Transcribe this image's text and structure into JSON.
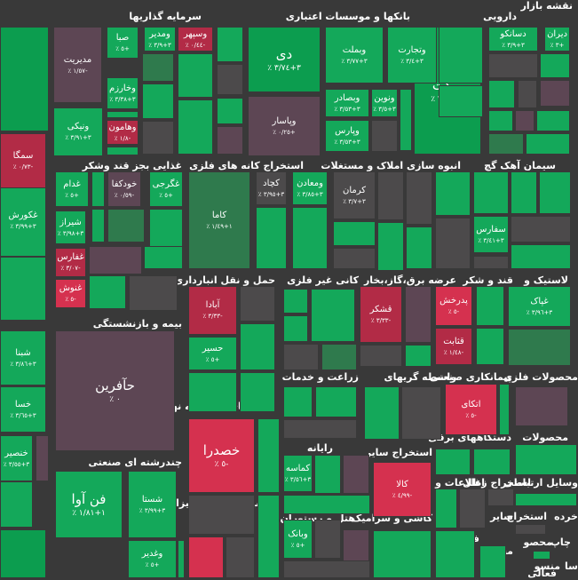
{
  "title": "نقشه بازار",
  "colors": {
    "strong_green": "#0c9d4f",
    "green": "#14a85a",
    "mid_green": "#2f7a4d",
    "gray": "#4c4a4b",
    "mauve": "#5d4654",
    "red": "#b22b46",
    "strong_red": "#d5314f",
    "background": "#393939"
  },
  "chart_data": {
    "type": "heatmap",
    "title": "نقشه بازار",
    "sectors": [
      {
        "name": "دارویی"
      },
      {
        "name": "بانکها و موسسات اعتباری"
      },
      {
        "name": "سرمایه گذاریها"
      },
      {
        "name": "سیمان آهک گچ"
      },
      {
        "name": "انبوه سازی املاک و مستغلات"
      },
      {
        "name": "استخراج کانه های فلزی"
      },
      {
        "name": "غذایی بجز قند وشکر"
      },
      {
        "name": "لاستیک و"
      },
      {
        "name": "قند و شکر"
      },
      {
        "name": "عرضه برق،گاز،بخار"
      },
      {
        "name": "کانی غیر فلزی"
      },
      {
        "name": "حمل و نقل انبارداری و"
      },
      {
        "name": "بیمه و بازنشستگی"
      },
      {
        "name": "محصولات فلزی"
      },
      {
        "name": "پیمانکاری صنعتی"
      },
      {
        "name": "واسطه گریهای"
      },
      {
        "name": "زراعت و خدمات"
      },
      {
        "name": "فعالیتهای کمکی به نهاد"
      },
      {
        "name": "محصولات"
      },
      {
        "name": "دستگاههای برقی"
      },
      {
        "name": "استخراج سایر"
      },
      {
        "name": "رایانه"
      },
      {
        "name": "چندرشته ای صنعتی"
      },
      {
        "name": "وسایل ارتباطی"
      },
      {
        "name": "استخراج زغال"
      },
      {
        "name": "اطلاعات و"
      },
      {
        "name": "ماشین آلات و تجهیزات"
      },
      {
        "name": "هتل و رستوران"
      },
      {
        "name": "کاشی و سرامیک"
      },
      {
        "name": "فنی و"
      },
      {
        "name": "سایر"
      },
      {
        "name": "استخراج"
      },
      {
        "name": "خرده"
      },
      {
        "name": "چاپ"
      },
      {
        "name": "محصو"
      },
      {
        "name": "مخابرا"
      },
      {
        "name": "منسو"
      },
      {
        "name": "سا"
      },
      {
        "name": "فعالی"
      }
    ],
    "tiles": [
      {
        "name": "دیران",
        "change": "٪ ٣+",
        "color": "green"
      },
      {
        "name": "دسانکو",
        "change": "٪ ٣+٣/٩",
        "color": "green"
      },
      {
        "name": "برکت",
        "change": "٪ ٣+٣/٠٨",
        "color": "strong_green"
      },
      {
        "name": "دی",
        "change": "٪ ٣+٣/٧٤",
        "color": "strong_green"
      },
      {
        "name": "وتجارت",
        "change": "٪ ٣+٣/٤",
        "color": "green"
      },
      {
        "name": "وبملت",
        "change": "٪ ٣+٣/٧٧",
        "color": "green"
      },
      {
        "name": "ونوین",
        "change": "٪ ٣+٣/٥",
        "color": "green"
      },
      {
        "name": "وبصادر",
        "change": "٪ ٣+٣/٥٣",
        "color": "green"
      },
      {
        "name": "وپارس",
        "change": "٪ ٣+٣/٥٣",
        "color": "green"
      },
      {
        "name": "وپاسار",
        "change": "٪ ٠/٢٥+",
        "color": "mauve"
      },
      {
        "name": "وسپهر",
        "change": "٪ ٠/٤٤-",
        "color": "red"
      },
      {
        "name": "ومدیر",
        "change": "٪ ٣+٣/٩",
        "color": "green"
      },
      {
        "name": "مدیریت",
        "change": "٪ ١/٥٧-",
        "color": "mauve"
      },
      {
        "name": "صبا",
        "change": "٪ ٥+",
        "color": "green"
      },
      {
        "name": "وخارزم",
        "change": "٪ ٣+٣/٣٨",
        "color": "green"
      },
      {
        "name": "ونیکی",
        "change": "٪ ٣+٣/٩١",
        "color": "green"
      },
      {
        "name": "وهامون",
        "change": "٪ ١/٨-",
        "color": "red"
      },
      {
        "name": "سفارس",
        "change": "٪ ٣+٣/٤١",
        "color": "green"
      },
      {
        "name": "کرمان",
        "change": "٪ ٣+٣/٧",
        "color": "gray"
      },
      {
        "name": "کچاد",
        "change": "٪ ٣+٣/٩٥",
        "color": "gray"
      },
      {
        "name": "ومعادن",
        "change": "٪ ٣+٣/٨٥",
        "color": "green"
      },
      {
        "name": "کاما",
        "change": "٪ ١+١/٤٩",
        "color": "mid_green"
      },
      {
        "name": "غگرجی",
        "change": "٪ ٥+",
        "color": "green"
      },
      {
        "name": "غدام",
        "change": "٪ ٥+",
        "color": "green"
      },
      {
        "name": "خودکفا",
        "change": "٪ ٠/٥٩-",
        "color": "mauve"
      },
      {
        "name": "غکورش",
        "change": "٪ ٣+٣/٩٩",
        "color": "green"
      },
      {
        "name": "شیراز",
        "change": "٪ ٣+٣/٩٨",
        "color": "green"
      },
      {
        "name": "غفارس",
        "change": "٪ ٣/٠٧-",
        "color": "red"
      },
      {
        "name": "غنوش",
        "change": "٪ ٥-",
        "color": "strong_red"
      },
      {
        "name": "غپاک",
        "change": "٪ ٣+٣/٩٦",
        "color": "green"
      },
      {
        "name": "پدرخش",
        "change": "٪ ٥-",
        "color": "strong_red"
      },
      {
        "name": "قثابت",
        "change": "٪ ١/٤٨-",
        "color": "red"
      },
      {
        "name": "قشکر",
        "change": "٪ ٣/٣٣-",
        "color": "red"
      },
      {
        "name": "آبادا",
        "change": "٪ ٣/٣٣-",
        "color": "red"
      },
      {
        "name": "حسیر",
        "change": "٪ ٥+",
        "color": "green"
      },
      {
        "name": "حآفرین",
        "change": "٪ ٠",
        "color": "mauve"
      },
      {
        "name": "اتکای",
        "change": "٪ ٥-",
        "color": "strong_red"
      },
      {
        "name": "خصدرا",
        "change": "٪ ٥-",
        "color": "strong_red"
      },
      {
        "name": "کالا",
        "change": "٪ ٤/٩٩-",
        "color": "strong_red"
      },
      {
        "name": "کماسه",
        "change": "٪ ٣+٣/٥٦",
        "color": "green"
      },
      {
        "name": "فن آوا",
        "change": "٪ ١+١/٨١",
        "color": "green"
      },
      {
        "name": "شستا",
        "change": "٪ ٣+٣/٩٩",
        "color": "green"
      },
      {
        "name": "وغدیر",
        "change": "٪ ٥+",
        "color": "green"
      },
      {
        "name": "وبانک",
        "change": "٪ ٥+",
        "color": "green"
      },
      {
        "name": "سمگا",
        "change": "٪ ٠/٧٣-",
        "color": "red"
      },
      {
        "name": "شبنا",
        "change": "٪ ٣+٣/٨٦",
        "color": "green"
      },
      {
        "name": "خسا",
        "change": "٪ ٣+٣/٦٥",
        "color": "green"
      },
      {
        "name": "خنصیر",
        "change": "٪ ٣+٣/٥٥",
        "color": "green"
      },
      {
        "name": "خموتور",
        "change": "٪ ٤/٩٤-",
        "color": "red"
      }
    ]
  }
}
